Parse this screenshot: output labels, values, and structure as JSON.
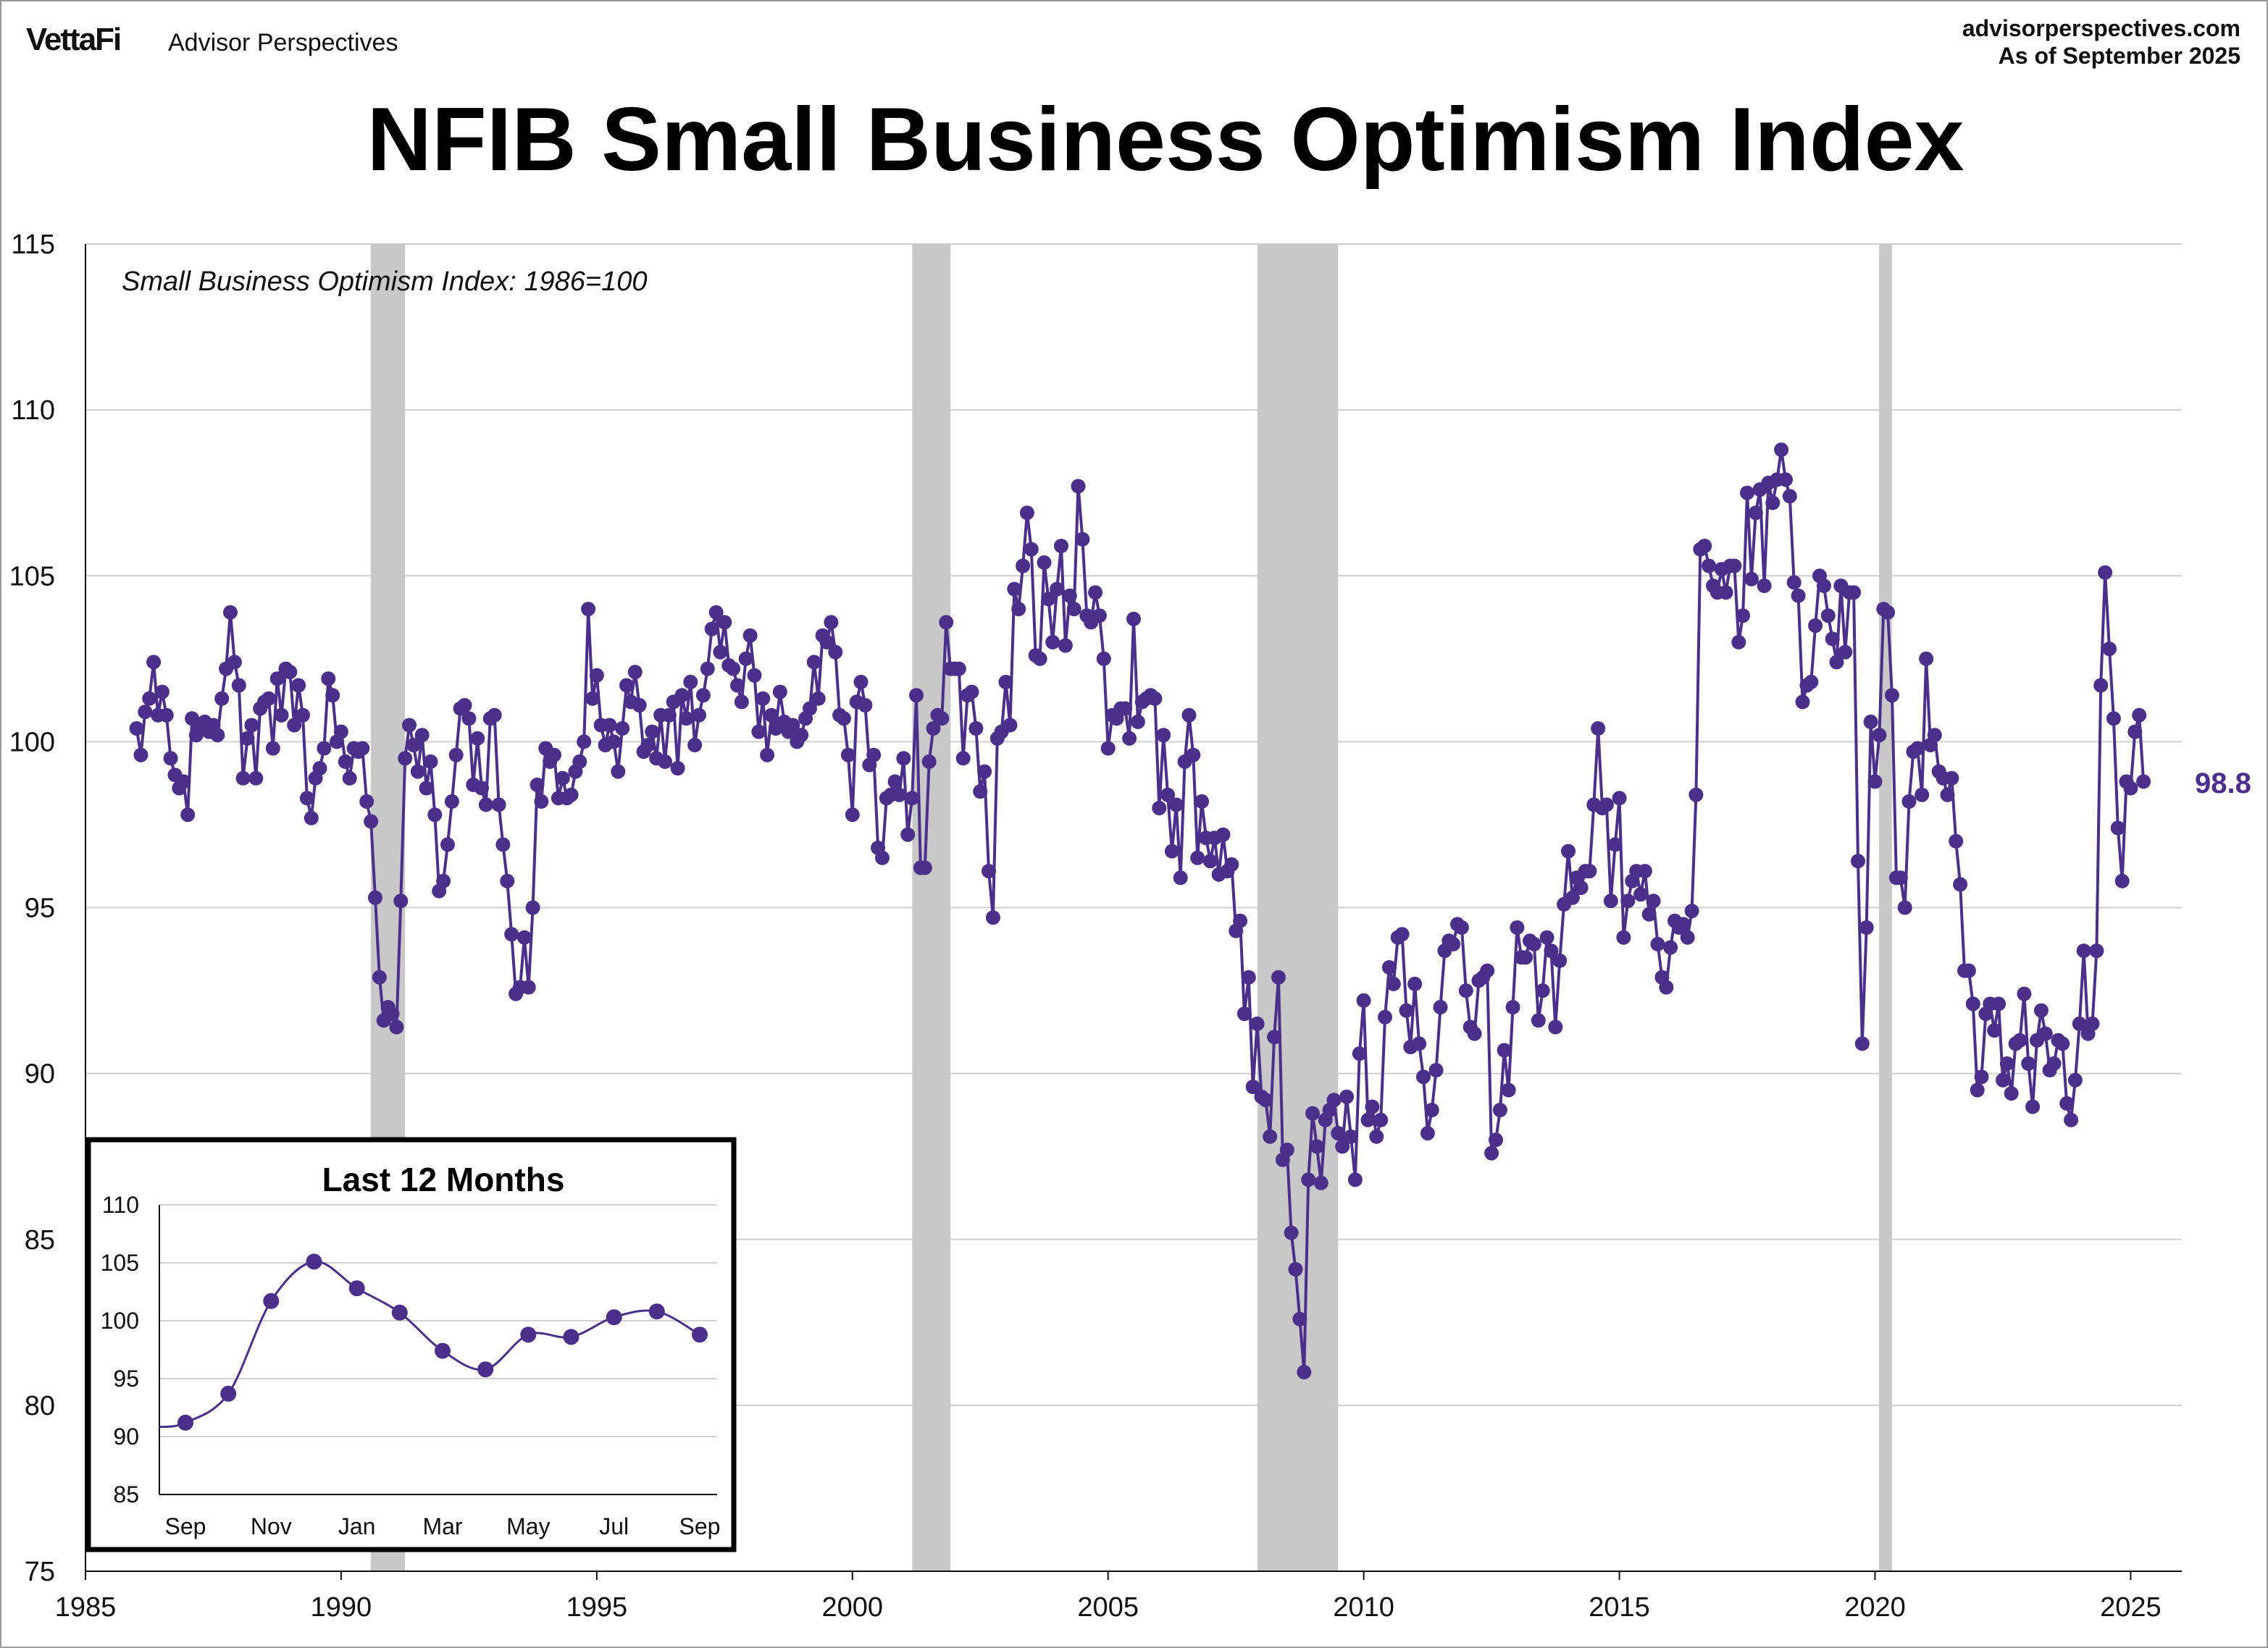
{
  "header": {
    "brand_name": "VettaFi",
    "brand_sub": "Advisor Perspectives",
    "site": "advisorperspectives.com",
    "as_of": "As of September 2025"
  },
  "chart_data": [
    {
      "type": "line",
      "title": "NFIB Small Business Optimism Index",
      "subtitle": "Small Business Optimism Index: 1986=100",
      "xlabel": "",
      "ylabel": "",
      "xlim": [
        1985,
        2026
      ],
      "ylim": [
        75,
        115
      ],
      "x_ticks": [
        1985,
        1990,
        1995,
        2000,
        2005,
        2010,
        2015,
        2020,
        2025
      ],
      "y_ticks": [
        75,
        80,
        85,
        90,
        95,
        100,
        105,
        110,
        115
      ],
      "grid": true,
      "last_value_label": "98.8",
      "series_color": "#4b2f8a",
      "recession_color": "#c8c8c8",
      "recessions": [
        [
          1990.58,
          1991.25
        ],
        [
          2001.17,
          2001.92
        ],
        [
          2007.92,
          2009.5
        ],
        [
          2020.08,
          2020.33
        ]
      ],
      "monthly_start": "1986-01",
      "values": [
        100.4,
        99.6,
        100.9,
        101.3,
        102.4,
        100.8,
        101.5,
        100.8,
        99.5,
        99.0,
        98.6,
        98.8,
        97.8,
        100.7,
        100.2,
        100.4,
        100.6,
        100.3,
        100.5,
        100.2,
        101.3,
        102.2,
        103.9,
        102.4,
        101.7,
        98.9,
        100.1,
        100.5,
        98.9,
        101.0,
        101.2,
        101.3,
        99.8,
        101.9,
        100.8,
        102.2,
        102.1,
        100.5,
        101.7,
        100.8,
        98.3,
        97.7,
        98.9,
        99.2,
        99.8,
        101.9,
        101.4,
        100.0,
        100.3,
        99.4,
        98.9,
        99.8,
        99.7,
        99.8,
        98.2,
        97.6,
        95.3,
        92.9,
        91.6,
        92.0,
        91.8,
        91.4,
        95.2,
        99.5,
        100.5,
        99.9,
        99.1,
        100.2,
        98.6,
        99.4,
        97.8,
        95.5,
        95.8,
        96.9,
        98.2,
        99.6,
        101.0,
        101.1,
        100.7,
        98.7,
        100.1,
        98.6,
        98.1,
        100.7,
        100.8,
        98.1,
        96.9,
        95.8,
        94.2,
        92.4,
        92.6,
        94.1,
        92.6,
        95.0,
        98.7,
        98.2,
        99.8,
        99.4,
        99.6,
        98.3,
        98.9,
        98.3,
        98.4,
        99.1,
        99.4,
        100.0,
        104.0,
        101.3,
        102.0,
        100.5,
        99.9,
        100.5,
        100.0,
        99.1,
        100.4,
        101.7,
        101.2,
        102.1,
        101.1,
        99.7,
        99.9,
        100.3,
        99.5,
        100.8,
        99.4,
        100.8,
        101.2,
        99.2,
        101.4,
        100.7,
        101.8,
        99.9,
        100.8,
        101.4,
        102.2,
        103.4,
        103.9,
        102.7,
        103.6,
        102.3,
        102.2,
        101.7,
        101.2,
        102.5,
        103.2,
        102.0,
        100.3,
        101.3,
        99.6,
        100.8,
        100.4,
        101.5,
        100.6,
        100.3,
        100.5,
        100.0,
        100.2,
        100.7,
        101.0,
        102.4,
        101.3,
        103.2,
        103.0,
        103.6,
        102.7,
        100.8,
        100.7,
        99.6,
        97.8,
        101.2,
        101.8,
        101.1,
        99.3,
        99.6,
        96.8,
        96.5,
        98.3,
        98.4,
        98.8,
        98.4,
        99.5,
        97.2,
        98.3,
        101.4,
        96.2,
        96.2,
        99.4,
        100.4,
        100.8,
        100.7,
        103.6,
        102.2,
        102.2,
        102.2,
        99.5,
        101.4,
        101.5,
        100.4,
        98.5,
        99.1,
        96.1,
        94.7,
        100.1,
        100.3,
        101.8,
        100.5,
        104.6,
        104.0,
        105.3,
        106.9,
        105.8,
        102.6,
        102.5,
        105.4,
        104.3,
        103.0,
        104.6,
        105.9,
        102.9,
        104.4,
        104.0,
        107.7,
        106.1,
        103.8,
        103.6,
        104.5,
        103.8,
        102.5,
        99.8,
        100.8,
        100.7,
        101.0,
        101.0,
        100.1,
        103.7,
        100.6,
        101.2,
        101.3,
        101.4,
        101.3,
        98.0,
        100.2,
        98.4,
        96.7,
        98.1,
        95.9,
        99.4,
        100.8,
        99.6,
        96.5,
        98.2,
        97.1,
        96.4,
        97.1,
        96.0,
        97.2,
        96.1,
        96.3,
        94.3,
        94.6,
        91.8,
        92.9,
        89.6,
        91.5,
        89.3,
        89.2,
        88.1,
        91.1,
        92.9,
        87.4,
        87.7,
        85.2,
        84.1,
        82.6,
        81.0,
        86.8,
        88.8,
        87.8,
        86.7,
        88.6,
        88.9,
        89.2,
        88.2,
        87.8,
        89.3,
        88.1,
        86.8,
        90.6,
        92.2,
        88.6,
        89.0,
        88.1,
        88.6,
        91.7,
        93.2,
        92.7,
        94.1,
        94.2,
        91.9,
        90.8,
        92.7,
        90.9,
        89.9,
        88.2,
        88.9,
        90.1,
        92.0,
        93.7,
        94.0,
        93.9,
        94.5,
        94.4,
        92.5,
        91.4,
        91.2,
        92.8,
        92.9,
        93.1,
        87.6,
        88.0,
        88.9,
        90.7,
        89.5,
        92.0,
        94.4,
        93.5,
        93.5,
        94.0,
        93.9,
        91.6,
        92.5,
        94.1,
        93.7,
        91.4,
        93.4,
        95.1,
        96.7,
        95.3,
        95.9,
        95.6,
        96.1,
        96.1,
        98.1,
        100.4,
        98.0,
        98.1,
        95.2,
        96.9,
        98.3,
        94.1,
        95.2,
        95.8,
        96.1,
        95.4,
        96.1,
        94.8,
        95.2,
        93.9,
        92.9,
        92.6,
        93.8,
        94.6,
        94.4,
        94.5,
        94.1,
        94.9,
        98.4,
        105.8,
        105.9,
        105.3,
        104.7,
        104.5,
        105.2,
        104.5,
        105.3,
        105.3,
        103.0,
        103.8,
        107.5,
        104.9,
        106.9,
        107.6,
        104.7,
        107.8,
        107.2,
        107.9,
        108.8,
        107.9,
        107.4,
        104.8,
        104.4,
        101.2,
        101.7,
        101.8,
        103.5,
        105.0,
        104.7,
        103.8,
        103.1,
        102.4,
        104.7,
        102.7,
        104.5,
        104.5,
        96.4,
        90.9,
        94.4,
        100.6,
        98.8,
        100.2,
        104.0,
        103.9,
        101.4,
        95.9,
        95.9,
        95.0,
        98.2,
        99.7,
        99.8,
        98.4,
        102.5,
        99.9,
        100.2,
        99.1,
        98.9,
        98.4,
        98.9,
        97.0,
        95.7,
        93.1,
        93.1,
        92.1,
        89.5,
        89.9,
        91.8,
        92.1,
        91.3,
        92.1,
        89.8,
        90.3,
        89.4,
        90.9,
        91.0,
        92.4,
        90.3,
        89.0,
        91.0,
        91.9,
        91.2,
        90.1,
        90.3,
        91.0,
        90.9,
        89.1,
        88.6,
        89.8,
        91.5,
        93.7,
        91.2,
        91.5,
        93.7,
        101.7,
        105.1,
        102.8,
        100.7,
        97.4,
        95.8,
        98.8,
        98.6,
        100.3,
        100.8,
        98.8
      ]
    },
    {
      "type": "line",
      "title": "Last 12 Months",
      "categories": [
        "Sep",
        "Oct",
        "Nov",
        "Dec",
        "Jan",
        "Feb",
        "Mar",
        "Apr",
        "May",
        "Jun",
        "Jul",
        "Aug",
        "Sep"
      ],
      "x_tick_labels": [
        "Sep",
        "Nov",
        "Jan",
        "Mar",
        "May",
        "Jul",
        "Sep"
      ],
      "values": [
        91.2,
        93.7,
        101.7,
        105.1,
        102.8,
        100.7,
        97.4,
        95.8,
        98.8,
        98.6,
        100.3,
        100.8,
        98.8
      ],
      "ylim": [
        85,
        110
      ],
      "y_ticks": [
        85,
        90,
        95,
        100,
        105,
        110
      ]
    }
  ]
}
